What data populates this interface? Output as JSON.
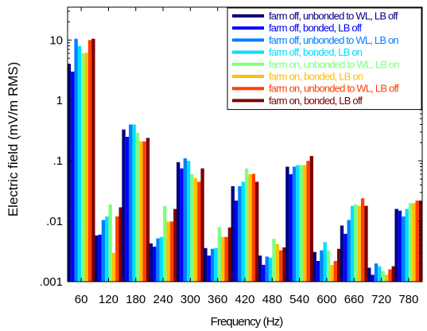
{
  "chart_data": {
    "type": "bar",
    "title": "",
    "xlabel": "Frequency (Hz)",
    "ylabel": "Electric field  (mV/m RMS)",
    "yscale": "log",
    "ylim": [
      0.001,
      35
    ],
    "yticks": [
      0.001,
      0.01,
      0.1,
      1,
      10
    ],
    "ytick_labels": [
      ".001",
      ".01",
      ".1",
      "1",
      "10"
    ],
    "categories": [
      "60",
      "120",
      "180",
      "240",
      "300",
      "360",
      "420",
      "480",
      "540",
      "600",
      "660",
      "720",
      "780"
    ],
    "legend_position": "top-right",
    "grid": false,
    "series": [
      {
        "name": "farm off, unbonded to WL, LB off",
        "color": "#00007f",
        "values": [
          4.0,
          0.0058,
          0.33,
          0.0043,
          0.095,
          0.0036,
          0.038,
          0.0027,
          0.08,
          0.0031,
          0.0085,
          0.0017,
          0.016
        ]
      },
      {
        "name": "farm off, bonded, LB off",
        "color": "#0000ff",
        "values": [
          3.0,
          0.006,
          0.25,
          0.0038,
          0.075,
          0.0027,
          0.022,
          0.0019,
          0.06,
          0.0022,
          0.0062,
          0.0013,
          0.015
        ]
      },
      {
        "name": "farm off, unbonded to WL, LB on",
        "color": "#007fff",
        "values": [
          10.5,
          0.0105,
          0.4,
          0.0052,
          0.11,
          0.0035,
          0.038,
          0.0026,
          0.08,
          0.0033,
          0.0105,
          0.002,
          0.012
        ]
      },
      {
        "name": "farm off, bonded, LB on",
        "color": "#00dfff",
        "values": [
          8.0,
          0.012,
          0.4,
          0.0055,
          0.1,
          0.0036,
          0.045,
          0.0025,
          0.085,
          0.0045,
          0.018,
          0.0018,
          0.016
        ]
      },
      {
        "name": "farm on, unbonded to WL, LB on",
        "color": "#7fff7f",
        "values": [
          6.0,
          0.019,
          0.29,
          0.018,
          0.06,
          0.008,
          0.075,
          0.0051,
          0.085,
          0.0033,
          0.019,
          0.0015,
          0.02
        ]
      },
      {
        "name": "farm on, bonded, LB on",
        "color": "#ffbf00",
        "values": [
          6.2,
          0.003,
          0.21,
          0.0099,
          0.052,
          0.0055,
          0.06,
          0.0042,
          0.085,
          0.0019,
          0.018,
          0.0013,
          0.02
        ]
      },
      {
        "name": "farm on, unbonded to WL, LB off",
        "color": "#ff3f00",
        "values": [
          10.0,
          0.012,
          0.21,
          0.0099,
          0.045,
          0.0055,
          0.061,
          0.0033,
          0.1,
          0.0022,
          0.024,
          0.0016,
          0.022
        ]
      },
      {
        "name": "farm on, bonded, LB off",
        "color": "#7f0000",
        "values": [
          10.5,
          0.017,
          0.24,
          0.016,
          0.075,
          0.0079,
          0.045,
          0.0037,
          0.12,
          0.0035,
          0.018,
          0.0018,
          0.022
        ]
      }
    ]
  }
}
